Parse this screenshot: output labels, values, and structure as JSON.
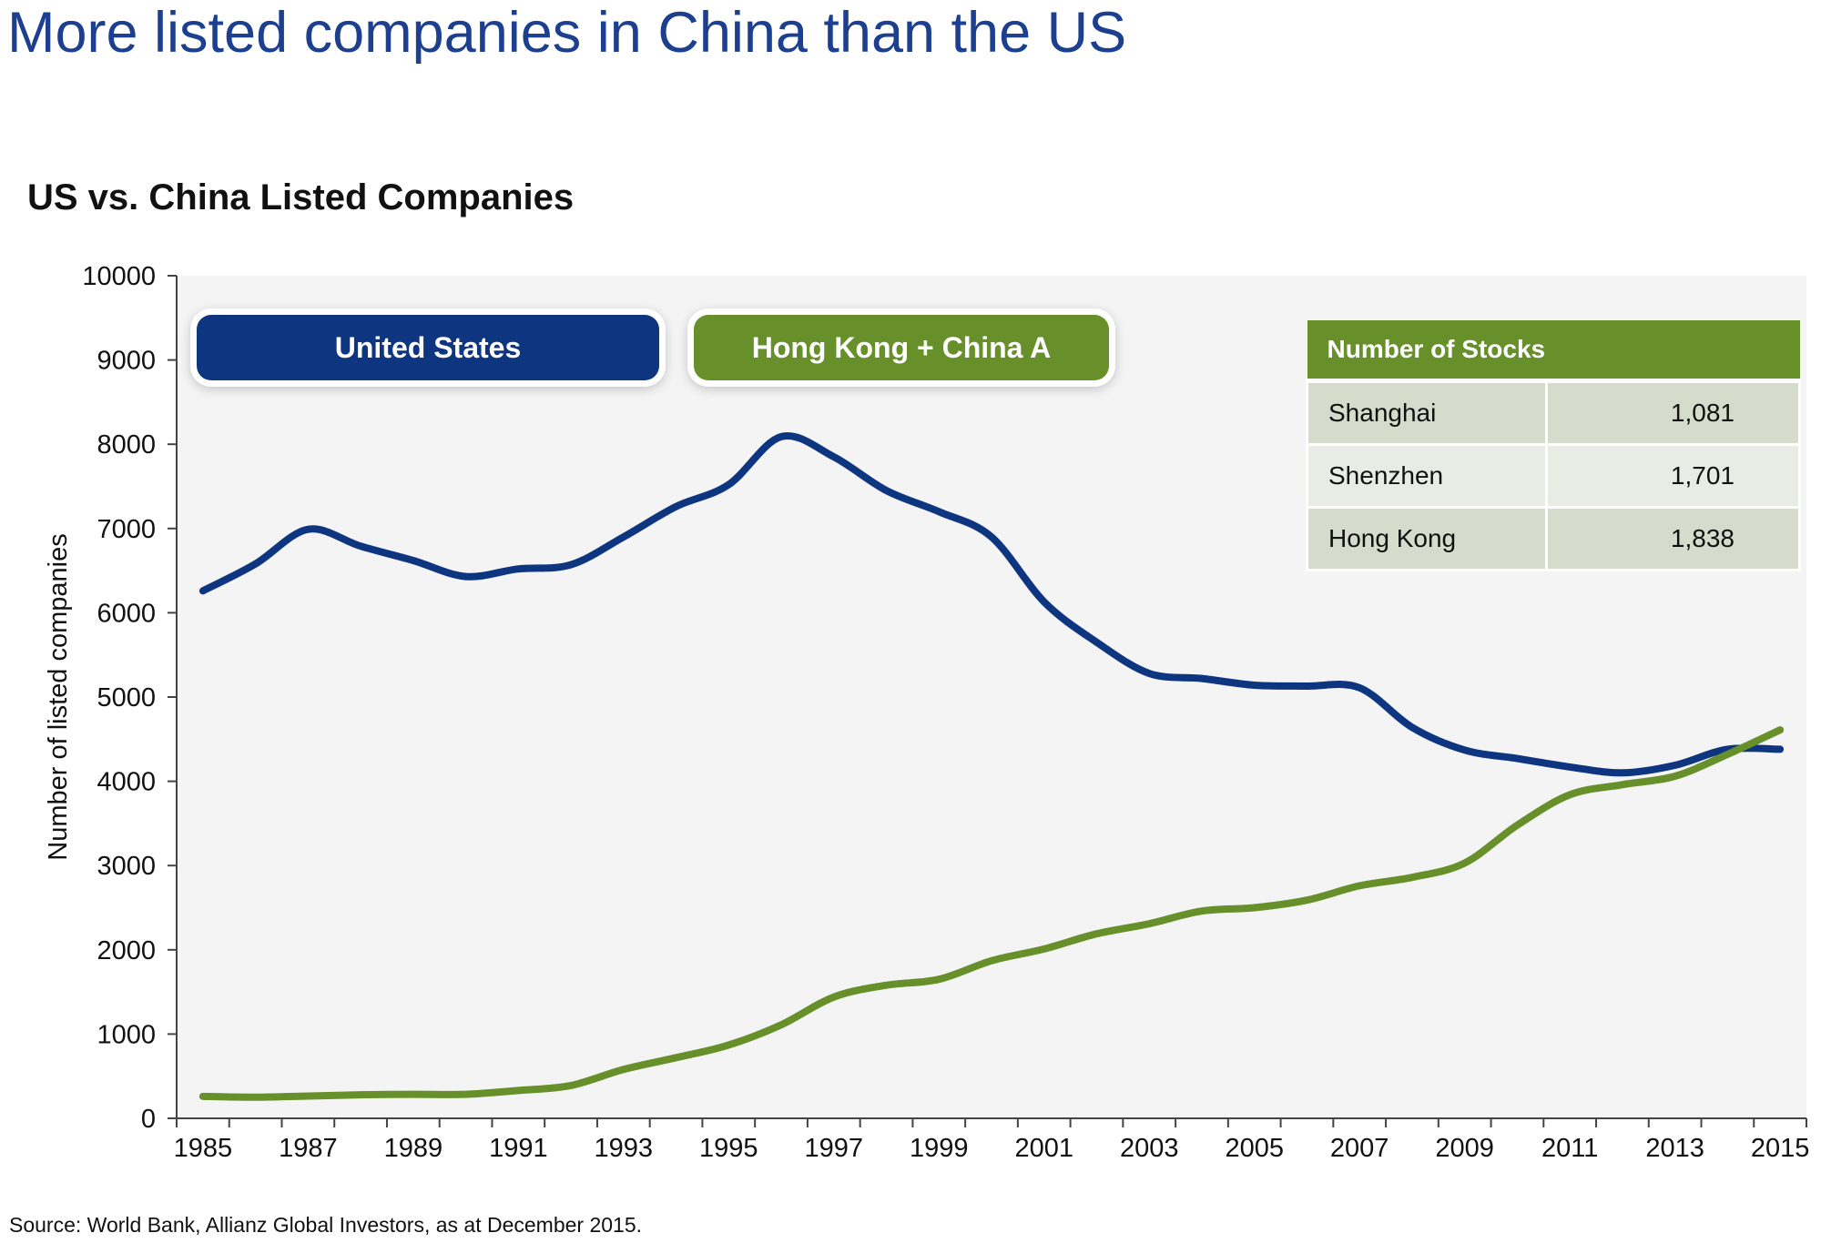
{
  "slide_title": "More listed companies in China than the US",
  "source_note": "Source: World Bank, Allianz Global Investors, as at December 2015.",
  "colors": {
    "us": "#0e3580",
    "china": "#67902a",
    "title": "#1c3f8f",
    "plot_bg": "#f4f4f4"
  },
  "legend": [
    {
      "label": "United States",
      "color": "#0e3580"
    },
    {
      "label": "Hong Kong + China A",
      "color": "#67902a"
    }
  ],
  "stocks_table": {
    "header": "Number of Stocks",
    "rows": [
      {
        "market": "Shanghai",
        "count": "1,081"
      },
      {
        "market": "Shenzhen",
        "count": "1,701"
      },
      {
        "market": "Hong Kong",
        "count": "1,838"
      }
    ]
  },
  "chart_data": {
    "type": "line",
    "title": "US vs. China Listed Companies",
    "xlabel": "",
    "ylabel": "Number of listed companies",
    "ylim": [
      0,
      10000
    ],
    "xlim": [
      1984.5,
      2015.5
    ],
    "yticks": [
      0,
      1000,
      2000,
      3000,
      4000,
      5000,
      6000,
      7000,
      8000,
      9000,
      10000
    ],
    "xticks": [
      1985,
      1987,
      1989,
      1991,
      1993,
      1995,
      1997,
      1999,
      2001,
      2003,
      2005,
      2007,
      2009,
      2011,
      2013,
      2015
    ],
    "grid": false,
    "x": [
      1985,
      1986,
      1987,
      1988,
      1989,
      1990,
      1991,
      1992,
      1993,
      1994,
      1995,
      1996,
      1997,
      1998,
      1999,
      2000,
      2001,
      2002,
      2003,
      2004,
      2005,
      2006,
      2007,
      2008,
      2009,
      2010,
      2011,
      2012,
      2013,
      2014,
      2015
    ],
    "series": [
      {
        "name": "United States",
        "color": "#0e3580",
        "values": [
          6260,
          6580,
          6990,
          6790,
          6620,
          6430,
          6520,
          6570,
          6900,
          7260,
          7520,
          8090,
          7850,
          7450,
          7200,
          6900,
          6130,
          5650,
          5280,
          5220,
          5140,
          5130,
          5110,
          4640,
          4370,
          4270,
          4170,
          4100,
          4190,
          4380,
          4380
        ]
      },
      {
        "name": "Hong Kong + China A",
        "color": "#67902a",
        "values": [
          260,
          250,
          265,
          280,
          285,
          285,
          330,
          390,
          580,
          720,
          870,
          1110,
          1440,
          1580,
          1650,
          1870,
          2010,
          2190,
          2310,
          2460,
          2500,
          2590,
          2760,
          2860,
          3030,
          3480,
          3840,
          3960,
          4060,
          4320,
          4610
        ]
      }
    ]
  }
}
